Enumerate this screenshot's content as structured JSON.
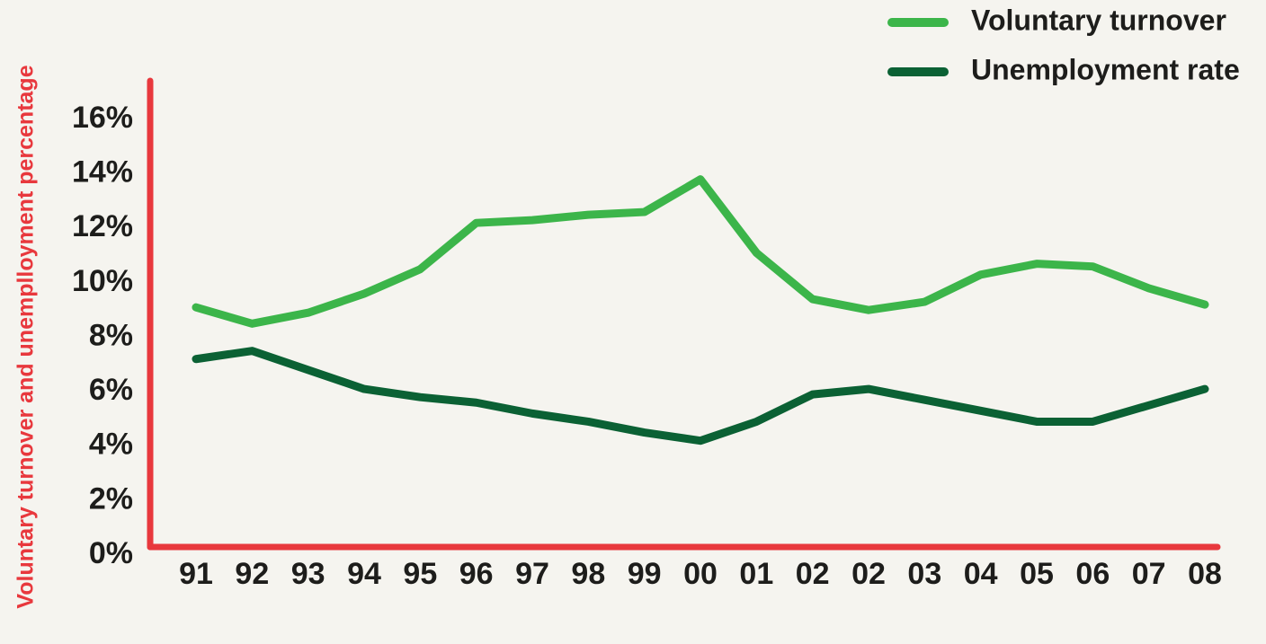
{
  "chart_data": {
    "type": "line",
    "y_axis_label": "Voluntary turnover and unemplloyment percentage",
    "categories": [
      "91",
      "92",
      "93",
      "94",
      "95",
      "96",
      "97",
      "98",
      "99",
      "00",
      "01",
      "02",
      "02",
      "03",
      "04",
      "05",
      "06",
      "07",
      "08"
    ],
    "series": [
      {
        "name": "Voluntary turnover",
        "color": "#3cb54a",
        "values": [
          9.1,
          8.5,
          8.9,
          9.6,
          10.5,
          12.2,
          12.3,
          12.5,
          12.6,
          13.8,
          11.1,
          9.4,
          9.0,
          9.3,
          10.3,
          10.7,
          10.6,
          9.8,
          9.2
        ]
      },
      {
        "name": "Unemployment rate",
        "color": "#0b6134",
        "values": [
          7.2,
          7.5,
          6.8,
          6.1,
          5.8,
          5.6,
          5.2,
          4.9,
          4.5,
          4.2,
          4.9,
          5.9,
          6.1,
          5.7,
          5.3,
          4.9,
          4.9,
          5.5,
          6.1
        ]
      }
    ],
    "ylim": [
      0,
      16
    ],
    "yticks": [
      {
        "value": 0,
        "label": "0%"
      },
      {
        "value": 2,
        "label": "2%"
      },
      {
        "value": 4,
        "label": "4%"
      },
      {
        "value": 6,
        "label": "6%"
      },
      {
        "value": 8,
        "label": "8%"
      },
      {
        "value": 10,
        "label": "10%"
      },
      {
        "value": 12,
        "label": "12%"
      },
      {
        "value": 14,
        "label": "14%"
      },
      {
        "value": 16,
        "label": "16%"
      }
    ],
    "axis_color": "#e8383d",
    "legend": "top-right"
  }
}
